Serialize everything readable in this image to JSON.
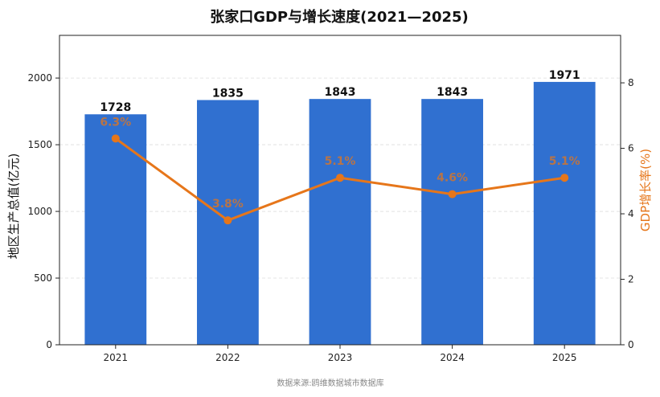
{
  "chart_data": {
    "type": "bar+line",
    "title": "张家口GDP与增长速度(2021—2025)",
    "source": "数据来源:鸥维数据城市数据库",
    "categories": [
      "2021",
      "2022",
      "2023",
      "2024",
      "2025"
    ],
    "series": [
      {
        "name": "地区生产总值(亿元)",
        "type": "bar",
        "axis": "left",
        "values": [
          1728,
          1835,
          1843,
          1843,
          1971
        ],
        "value_labels": [
          "1728",
          "1835",
          "1843",
          "1843",
          "1971"
        ],
        "color": "#3070d0"
      },
      {
        "name": "GDP增长率(%)",
        "type": "line",
        "axis": "right",
        "values": [
          6.3,
          3.8,
          5.1,
          4.6,
          5.1
        ],
        "value_labels": [
          "6.3%",
          "3.8%",
          "5.1%",
          "4.6%",
          "5.1%"
        ],
        "color": "#e6761a"
      }
    ],
    "y_left": {
      "label": "地区生产总值(亿元)",
      "range": [
        0,
        2320
      ],
      "ticks": [
        0,
        500,
        1000,
        1500,
        2000
      ],
      "tick_labels": [
        "0",
        "500",
        "1000",
        "1500",
        "2000"
      ]
    },
    "y_right": {
      "label": "GDP增长率(%)",
      "range": [
        0,
        9.45
      ],
      "ticks": [
        0,
        2,
        4,
        6,
        8
      ],
      "tick_labels": [
        "0",
        "2",
        "4",
        "6",
        "8"
      ]
    },
    "grid": "horizontal-dashed",
    "legend": "none"
  }
}
